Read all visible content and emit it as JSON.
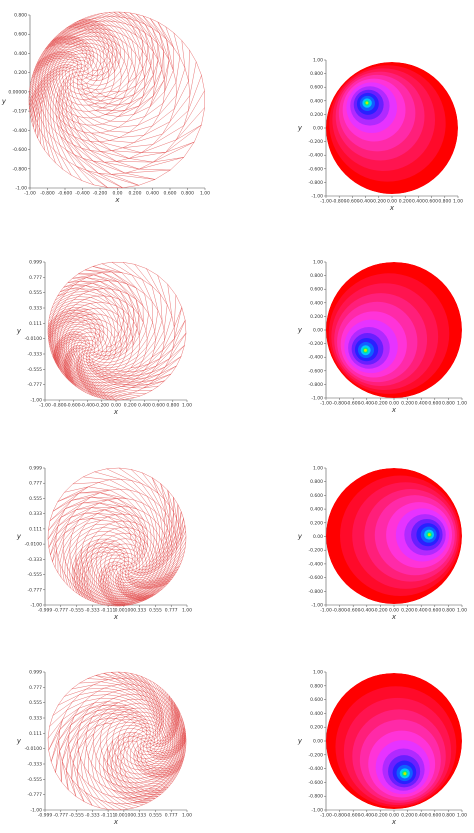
{
  "panels": [
    {
      "kind": "mesh",
      "xlabel": "x",
      "ylabel": "y",
      "xticks": [
        "-1.00",
        "-0.800",
        "-0.600",
        "-0.400",
        "-0.200",
        "0.00",
        "0.200",
        "0.400",
        "0.600",
        "0.800",
        "1.00"
      ],
      "yticks": [
        "0.800",
        "0.600",
        "0.400",
        "0.200",
        "0.00000",
        "-0.197",
        "-0.400",
        "-0.600",
        "-0.800",
        "-1.00"
      ]
    },
    {
      "kind": "contour",
      "xlabel": "x",
      "ylabel": "y",
      "xticks": [
        "-1.00",
        "-0.800",
        "-0.600",
        "-0.400",
        "-0.200",
        "0.00",
        "0.200",
        "0.400",
        "0.600",
        "0.800",
        "1.00"
      ],
      "yticks": [
        "1.00",
        "0.800",
        "0.600",
        "0.400",
        "0.200",
        "0.00",
        "-0.200",
        "-0.400",
        "-0.600",
        "-0.800",
        "-1.00"
      ]
    },
    {
      "kind": "mesh",
      "xlabel": "x",
      "ylabel": "y",
      "xticks": [
        "-1.00",
        "-0.800",
        "-0.600",
        "-0.400",
        "-0.200",
        "0.00",
        "0.200",
        "0.400",
        "0.600",
        "0.800",
        "1.00"
      ],
      "yticks": [
        "0.999",
        "0.777",
        "0.555",
        "0.333",
        "0.111",
        "-0.0100",
        "-0.333",
        "-0.555",
        "-0.777",
        "-1.00"
      ]
    },
    {
      "kind": "contour",
      "xlabel": "x",
      "ylabel": "y",
      "xticks": [
        "-1.00",
        "-0.800",
        "-0.600",
        "-0.400",
        "-0.200",
        "0.00",
        "0.200",
        "0.400",
        "0.600",
        "0.800",
        "1.00"
      ],
      "yticks": [
        "1.00",
        "0.800",
        "0.600",
        "0.400",
        "0.200",
        "0.00",
        "-0.200",
        "-0.400",
        "-0.600",
        "-0.800",
        "-1.00"
      ]
    },
    {
      "kind": "mesh",
      "xlabel": "x",
      "ylabel": "y",
      "xticks": [
        "-0.999",
        "-0.777",
        "-0.555",
        "-0.333",
        "-0.111",
        "0.00100",
        "0.333",
        "0.555",
        "0.777",
        "1.00"
      ],
      "yticks": [
        "0.999",
        "0.777",
        "0.555",
        "0.333",
        "0.111",
        "-0.0100",
        "-0.333",
        "-0.555",
        "-0.777",
        "-1.00"
      ]
    },
    {
      "kind": "contour",
      "xlabel": "x",
      "ylabel": "y",
      "xticks": [
        "-1.00",
        "-0.800",
        "-0.600",
        "-0.400",
        "-0.200",
        "0.00",
        "0.200",
        "0.400",
        "0.600",
        "0.800",
        "1.00"
      ],
      "yticks": [
        "1.00",
        "0.800",
        "0.600",
        "0.400",
        "0.200",
        "0.00",
        "-0.200",
        "-0.400",
        "-0.600",
        "-0.800",
        "-1.00"
      ]
    },
    {
      "kind": "mesh",
      "xlabel": "x",
      "ylabel": "y",
      "xticks": [
        "-0.999",
        "-0.777",
        "-0.555",
        "-0.333",
        "-0.111",
        "0.00100",
        "0.333",
        "0.555",
        "0.777",
        "1.00"
      ],
      "yticks": [
        "0.999",
        "0.777",
        "0.555",
        "0.333",
        "0.111",
        "-0.0100",
        "-0.333",
        "-0.555",
        "-0.777",
        "-1.00"
      ]
    },
    {
      "kind": "contour",
      "xlabel": "x",
      "ylabel": "y",
      "xticks": [
        "-1.00",
        "-0.800",
        "-0.600",
        "-0.400",
        "-0.200",
        "0.00",
        "0.200",
        "0.400",
        "0.600",
        "0.800",
        "1.00"
      ],
      "yticks": [
        "1.00",
        "0.800",
        "0.600",
        "0.400",
        "0.200",
        "0.00",
        "-0.200",
        "-0.400",
        "-0.600",
        "-0.800",
        "-1.00"
      ]
    }
  ]
}
